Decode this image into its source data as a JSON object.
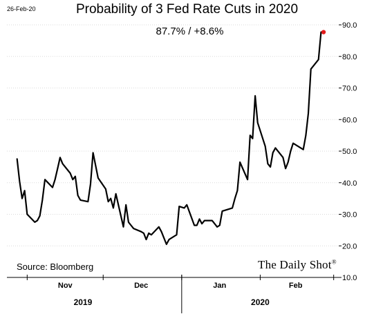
{
  "header": {
    "date_stamp": "26-Feb-20",
    "title": "Probability of 3 Fed Rate Cuts in 2020",
    "subtitle": "87.7%  /  +8.6%"
  },
  "footer": {
    "source": "Source: Bloomberg",
    "brand": "The Daily Shot",
    "brand_mark": "®"
  },
  "chart_data": {
    "type": "line",
    "title": "Probability of 3 Fed Rate Cuts in 2020",
    "xlabel": "",
    "ylabel": "",
    "ylim": [
      10,
      90
    ],
    "yticks": [
      10,
      20,
      30,
      40,
      50,
      60,
      70,
      80,
      90
    ],
    "ytick_labels": [
      "10.0",
      "20.0",
      "30.0",
      "40.0",
      "50.0",
      "60.0",
      "70.0",
      "80.0",
      "90.0"
    ],
    "y_axis_side": "right",
    "grid": "horizontal",
    "x_range": [
      "2019-10-24",
      "2020-03-03"
    ],
    "month_labels": [
      {
        "label": "Nov",
        "center": "2019-11-16"
      },
      {
        "label": "Dec",
        "center": "2019-12-16"
      },
      {
        "label": "Jan",
        "center": "2020-01-16"
      },
      {
        "label": "Feb",
        "center": "2020-02-15"
      }
    ],
    "month_ticks": [
      "2019-11-01",
      "2019-12-01",
      "2020-01-01",
      "2020-02-01",
      "2020-03-01"
    ],
    "year_labels": [
      {
        "label": "2019",
        "center": "2019-11-23"
      },
      {
        "label": "2020",
        "center": "2020-02-01"
      }
    ],
    "year_divider": "2020-01-01",
    "line_color": "#000000",
    "marker_color": "#e31b1b",
    "series": [
      {
        "x": [
          "2019-10-28",
          "2019-10-29",
          "2019-10-30",
          "2019-10-31",
          "2019-11-01",
          "2019-11-04",
          "2019-11-05",
          "2019-11-06",
          "2019-11-07",
          "2019-11-08",
          "2019-11-11",
          "2019-11-12",
          "2019-11-13",
          "2019-11-14",
          "2019-11-15",
          "2019-11-18",
          "2019-11-19",
          "2019-11-20",
          "2019-11-21",
          "2019-11-22",
          "2019-11-25",
          "2019-11-26",
          "2019-11-27",
          "2019-11-29",
          "2019-12-02",
          "2019-12-03",
          "2019-12-04",
          "2019-12-05",
          "2019-12-06",
          "2019-12-09",
          "2019-12-10",
          "2019-12-11",
          "2019-12-12",
          "2019-12-13",
          "2019-12-16",
          "2019-12-17",
          "2019-12-18",
          "2019-12-19",
          "2019-12-20",
          "2019-12-23",
          "2019-12-24",
          "2019-12-26",
          "2019-12-27",
          "2019-12-30",
          "2019-12-31",
          "2020-01-02",
          "2020-01-03",
          "2020-01-06",
          "2020-01-07",
          "2020-01-08",
          "2020-01-09",
          "2020-01-10",
          "2020-01-13",
          "2020-01-14",
          "2020-01-15",
          "2020-01-16",
          "2020-01-17",
          "2020-01-21",
          "2020-01-22",
          "2020-01-23",
          "2020-01-24",
          "2020-01-27",
          "2020-01-28",
          "2020-01-29",
          "2020-01-30",
          "2020-01-31",
          "2020-02-03",
          "2020-02-04",
          "2020-02-05",
          "2020-02-06",
          "2020-02-07",
          "2020-02-10",
          "2020-02-11",
          "2020-02-12",
          "2020-02-13",
          "2020-02-14",
          "2020-02-18",
          "2020-02-19",
          "2020-02-20",
          "2020-02-21",
          "2020-02-24",
          "2020-02-25",
          "2020-02-26"
        ],
        "values": [
          47.5,
          40.5,
          35.0,
          37.5,
          30.0,
          27.5,
          28.0,
          29.5,
          34.5,
          41.0,
          38.5,
          41.0,
          44.5,
          48.0,
          46.0,
          43.0,
          41.0,
          42.0,
          36.0,
          34.5,
          34.0,
          39.5,
          49.5,
          41.5,
          38.0,
          34.0,
          35.0,
          32.0,
          36.5,
          26.0,
          33.0,
          27.5,
          26.5,
          25.5,
          24.5,
          24.0,
          22.0,
          24.0,
          23.5,
          26.0,
          24.5,
          20.5,
          22.0,
          23.5,
          32.5,
          32.0,
          33.0,
          26.5,
          26.5,
          28.5,
          27.0,
          28.0,
          28.0,
          27.0,
          26.0,
          26.5,
          31.0,
          32.0,
          35.0,
          37.5,
          46.5,
          41.0,
          55.0,
          54.0,
          67.5,
          59.0,
          51.5,
          46.0,
          45.0,
          49.5,
          51.0,
          48.0,
          44.5,
          46.5,
          50.0,
          52.5,
          50.5,
          55.0,
          62.0,
          76.0,
          79.0,
          87.7,
          87.7
        ]
      }
    ],
    "last_point": {
      "x": "2020-02-26",
      "value": 87.7
    }
  }
}
